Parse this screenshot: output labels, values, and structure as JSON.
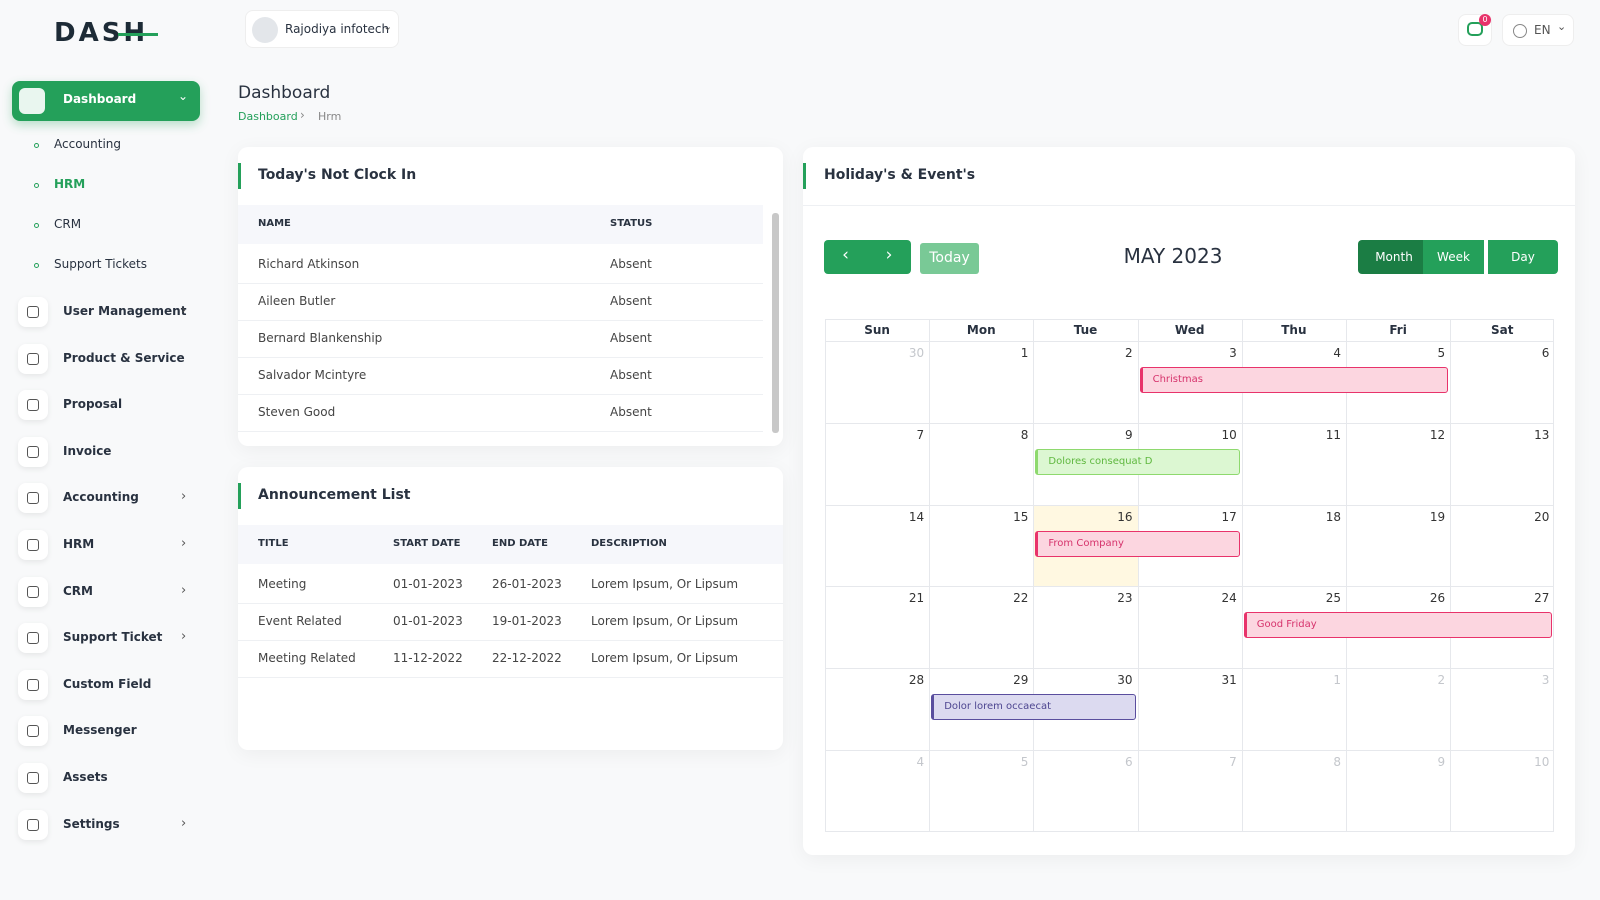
{
  "header": {
    "logo": "DASH",
    "company": "Rajodiya infotech",
    "notifications": 0,
    "language": "EN"
  },
  "sidebar": {
    "menu": [
      {
        "label": "Dashboard",
        "submenu": [
          "Accounting",
          "HRM",
          "CRM",
          "Support Tickets"
        ]
      },
      {
        "label": "User Management"
      },
      {
        "label": "Product & Service"
      },
      {
        "label": "Proposal"
      },
      {
        "label": "Invoice"
      },
      {
        "label": "Accounting"
      },
      {
        "label": "HRM"
      },
      {
        "label": "CRM"
      },
      {
        "label": "Support Ticket"
      },
      {
        "label": "Custom Field"
      },
      {
        "label": "Messenger"
      },
      {
        "label": "Assets"
      },
      {
        "label": "Settings"
      }
    ]
  },
  "page": {
    "title": "Dashboard",
    "breadcrumb": [
      "Dashboard",
      "Hrm"
    ]
  },
  "not_clock_in": {
    "title": "Today's Not Clock In",
    "columns": [
      "NAME",
      "STATUS"
    ],
    "rows": [
      [
        "Richard Atkinson",
        "Absent"
      ],
      [
        "Aileen Butler",
        "Absent"
      ],
      [
        "Bernard Blankenship",
        "Absent"
      ],
      [
        "Salvador Mcintyre",
        "Absent"
      ],
      [
        "Steven Good",
        "Absent"
      ]
    ]
  },
  "announcements": {
    "title": "Announcement List",
    "columns": [
      "TITLE",
      "START DATE",
      "END DATE",
      "DESCRIPTION"
    ],
    "rows": [
      [
        "Meeting",
        "01-01-2023",
        "26-01-2023",
        "Lorem Ipsum, Or Lipsum"
      ],
      [
        "Event Related",
        "01-01-2023",
        "19-01-2023",
        "Lorem Ipsum, Or Lipsum"
      ],
      [
        "Meeting Related",
        "11-12-2022",
        "22-12-2022",
        "Lorem Ipsum, Or Lipsum"
      ]
    ]
  },
  "calendar": {
    "title": "Holiday's & Event's",
    "month": "MAY 2023",
    "today_button": "Today",
    "views": [
      "Month",
      "Week",
      "Day"
    ],
    "weekdays": [
      "Sun",
      "Mon",
      "Tue",
      "Wed",
      "Thu",
      "Fri",
      "Sat"
    ],
    "weeks": [
      [
        30,
        1,
        2,
        3,
        4,
        5,
        6
      ],
      [
        7,
        8,
        9,
        10,
        11,
        12,
        13
      ],
      [
        14,
        15,
        16,
        17,
        18,
        19,
        20
      ],
      [
        21,
        22,
        23,
        24,
        25,
        26,
        27
      ],
      [
        28,
        29,
        30,
        31,
        1,
        2,
        3
      ],
      [
        4,
        5,
        6,
        7,
        8,
        9,
        10
      ]
    ],
    "events": [
      "Christmas",
      "Dolores consequat D",
      "From Company",
      "Good Friday",
      "Dolor lorem occaecat"
    ]
  }
}
